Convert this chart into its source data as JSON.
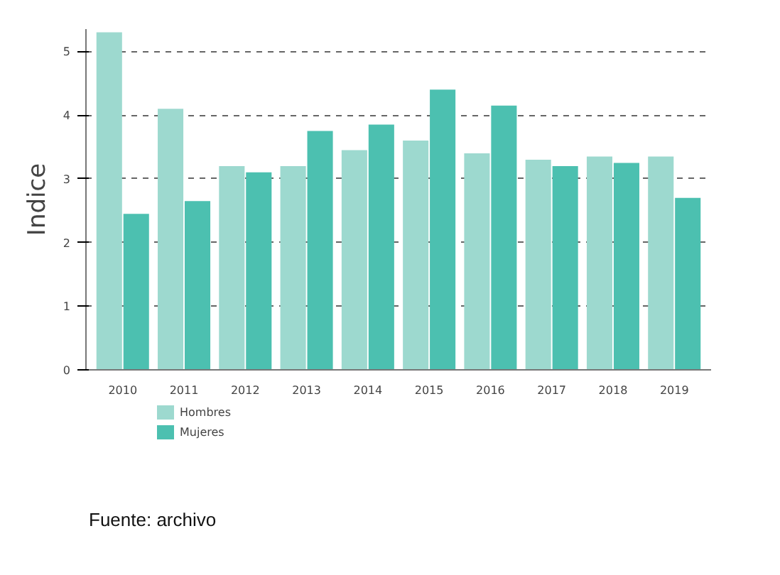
{
  "chart_data": {
    "type": "bar",
    "ylabel": "Indice",
    "categories": [
      "2010",
      "2011",
      "2012",
      "2013",
      "2014",
      "2015",
      "2016",
      "2017",
      "2018",
      "2019"
    ],
    "series": [
      {
        "name": "Hombres",
        "color": "#9dd9cf",
        "values": [
          5.3,
          4.1,
          3.2,
          3.2,
          3.45,
          3.6,
          3.4,
          3.3,
          3.35,
          3.35
        ]
      },
      {
        "name": "Mujeres",
        "color": "#4cc0b0",
        "values": [
          2.45,
          2.65,
          3.1,
          3.75,
          3.85,
          4.4,
          4.15,
          3.2,
          3.25,
          2.7
        ]
      }
    ],
    "ylim": [
      0,
      5.35
    ],
    "yticks": [
      0,
      1,
      2,
      3,
      4,
      5
    ],
    "grid": "y",
    "legend": "bottom left",
    "annotations": [
      "Fuente: archivo"
    ]
  }
}
